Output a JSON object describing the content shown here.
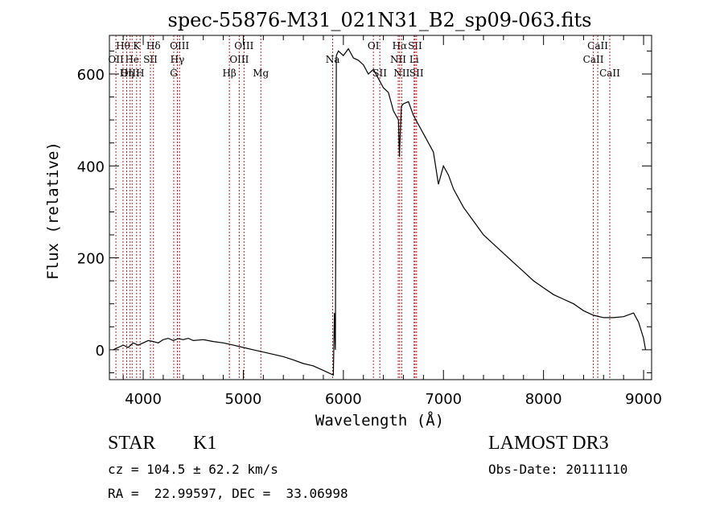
{
  "chart_data": {
    "type": "line",
    "title": "spec-55876-M31_021N31_B2_sp09-063.fits",
    "xlabel": "Wavelength (Å)",
    "ylabel": "Flux (relative)",
    "xlim": [
      3662,
      9080
    ],
    "ylim": [
      -65,
      684
    ],
    "xticks": [
      4000,
      5000,
      6000,
      7000,
      8000,
      9000
    ],
    "xtick_labels": [
      "4000",
      "5000",
      "6000",
      "7000",
      "8000",
      "9000"
    ],
    "xminor_step": 200,
    "yticks": [
      0,
      200,
      400,
      600
    ],
    "ytick_labels": [
      "0",
      "200",
      "400",
      "600"
    ],
    "yminor_step": 50,
    "grid": false,
    "line_color": "#000000",
    "marker_line_color": "#b22222",
    "series": [
      {
        "name": "spectrum",
        "x": [
          3700,
          3750,
          3800,
          3850,
          3900,
          3950,
          4000,
          4050,
          4100,
          4150,
          4200,
          4250,
          4300,
          4350,
          4400,
          4450,
          4500,
          4600,
          4700,
          4800,
          4900,
          5000,
          5100,
          5200,
          5300,
          5400,
          5500,
          5600,
          5700,
          5800,
          5850,
          5900,
          5910,
          5920,
          5930,
          5950,
          6000,
          6050,
          6100,
          6150,
          6200,
          6250,
          6300,
          6350,
          6400,
          6450,
          6500,
          6550,
          6560,
          6570,
          6580,
          6600,
          6650,
          6700,
          6750,
          6800,
          6850,
          6900,
          6950,
          7000,
          7050,
          7100,
          7150,
          7200,
          7300,
          7400,
          7500,
          7600,
          7700,
          7800,
          7900,
          8000,
          8100,
          8200,
          8300,
          8400,
          8500,
          8600,
          8700,
          8800,
          8900,
          8950,
          9000,
          9020
        ],
        "y": [
          0,
          5,
          10,
          5,
          15,
          10,
          15,
          20,
          18,
          15,
          22,
          25,
          20,
          24,
          22,
          25,
          20,
          22,
          18,
          15,
          10,
          5,
          0,
          -5,
          -10,
          -15,
          -22,
          -30,
          -35,
          -45,
          -50,
          -55,
          80,
          0,
          640,
          650,
          640,
          655,
          635,
          630,
          620,
          600,
          610,
          590,
          570,
          560,
          520,
          500,
          420,
          480,
          530,
          535,
          540,
          510,
          490,
          470,
          450,
          430,
          360,
          400,
          380,
          350,
          330,
          310,
          280,
          250,
          230,
          210,
          190,
          170,
          150,
          135,
          120,
          110,
          100,
          85,
          75,
          70,
          70,
          72,
          80,
          60,
          25,
          0
        ]
      }
    ],
    "line_markers": [
      {
        "label": "Hθ",
        "x": 3798,
        "row": 0
      },
      {
        "label": "OII",
        "x": 3727,
        "row": 1
      },
      {
        "label": "OIII",
        "x": 3869,
        "row": 2
      },
      {
        "label": "K",
        "x": 3934,
        "row": 0
      },
      {
        "label": "He",
        "x": 3889,
        "row": 1
      },
      {
        "label": "Hη",
        "x": 3835,
        "row": 2
      },
      {
        "label": "Hδ",
        "x": 4102,
        "row": 0
      },
      {
        "label": "SII",
        "x": 4072,
        "row": 1
      },
      {
        "label": "H",
        "x": 3969,
        "row": 2
      },
      {
        "label": "OIII",
        "x": 4363,
        "row": 0
      },
      {
        "label": "Hγ",
        "x": 4341,
        "row": 1
      },
      {
        "label": "G",
        "x": 4305,
        "row": 2
      },
      {
        "label": "OIII",
        "x": 5007,
        "row": 0
      },
      {
        "label": "OIII",
        "x": 4959,
        "row": 1
      },
      {
        "label": "Hβ",
        "x": 4861,
        "row": 2
      },
      {
        "label": "Mg",
        "x": 5175,
        "row": 2
      },
      {
        "label": "Na",
        "x": 5893,
        "row": 1
      },
      {
        "label": "OI",
        "x": 6300,
        "row": 0
      },
      {
        "label": "SII",
        "x": 6364,
        "row": 2
      },
      {
        "label": "Hα",
        "x": 6563,
        "row": 0
      },
      {
        "label": "SII",
        "x": 6716,
        "row": 0
      },
      {
        "label": "NII",
        "x": 6548,
        "row": 1
      },
      {
        "label": "Li",
        "x": 6707,
        "row": 1
      },
      {
        "label": "NII",
        "x": 6583,
        "row": 2
      },
      {
        "label": "SII",
        "x": 6731,
        "row": 2
      },
      {
        "label": "CaII",
        "x": 8542,
        "row": 0
      },
      {
        "label": "CaII",
        "x": 8498,
        "row": 1
      },
      {
        "label": "CaII",
        "x": 8662,
        "row": 2
      }
    ]
  },
  "info": {
    "class_label": "STAR",
    "subclass_label": "K1",
    "survey_label": "LAMOST DR3",
    "cz_text": "cz = 104.5 ± 62.2 km/s",
    "obs_date_text": "Obs-Date: 20111110",
    "radec_text": "RA =  22.99597, DEC =  33.06998"
  }
}
